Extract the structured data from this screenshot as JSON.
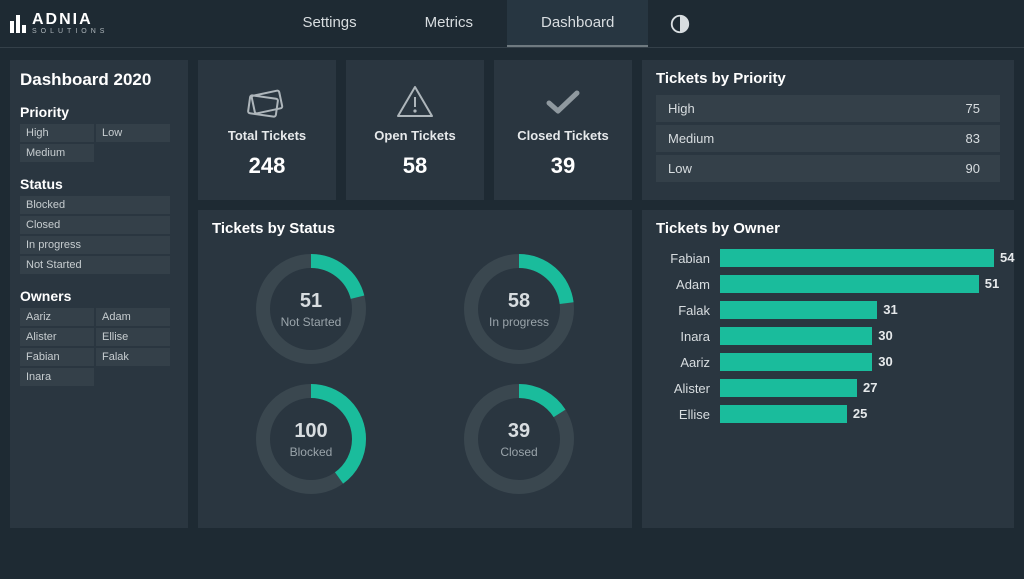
{
  "brand": {
    "name": "ADNIA",
    "sub": "SOLUTIONS"
  },
  "nav": {
    "items": [
      "Settings",
      "Metrics",
      "Dashboard"
    ],
    "active_index": 2
  },
  "sidebar": {
    "title": "Dashboard  2020",
    "priority": {
      "title": "Priority",
      "items": [
        "High",
        "Low",
        "Medium"
      ]
    },
    "status": {
      "title": "Status",
      "items": [
        "Blocked",
        "Closed",
        "In progress",
        "Not Started"
      ]
    },
    "owners": {
      "title": "Owners",
      "items": [
        "Aariz",
        "Adam",
        "Alister",
        "Ellise",
        "Fabian",
        "Falak",
        "Inara"
      ]
    }
  },
  "kpis": [
    {
      "label": "Total Tickets",
      "value": "248",
      "icon": "ticket"
    },
    {
      "label": "Open Tickets",
      "value": "58",
      "icon": "warning"
    },
    {
      "label": "Closed Tickets",
      "value": "39",
      "icon": "check"
    }
  ],
  "priority_panel": {
    "title": "Tickets by Priority",
    "rows": [
      {
        "label": "High",
        "value": "75"
      },
      {
        "label": "Medium",
        "value": "83"
      },
      {
        "label": "Low",
        "value": "90"
      }
    ]
  },
  "status_panel": {
    "title": "Tickets by Status",
    "accent_color": "#1abc9c",
    "track_color": "#3a474f",
    "donuts": [
      {
        "label": "Not Started",
        "value": "51",
        "fraction": 0.21,
        "start_deg": -90
      },
      {
        "label": "In progress",
        "value": "58",
        "fraction": 0.23,
        "start_deg": -90
      },
      {
        "label": "Blocked",
        "value": "100",
        "fraction": 0.4,
        "start_deg": -90
      },
      {
        "label": "Closed",
        "value": "39",
        "fraction": 0.16,
        "start_deg": -90
      }
    ]
  },
  "owner_panel": {
    "title": "Tickets by Owner",
    "bar_color": "#1abc9c",
    "max_value": 54,
    "rows": [
      {
        "name": "Fabian",
        "value": 54
      },
      {
        "name": "Adam",
        "value": 51
      },
      {
        "name": "Falak",
        "value": 31
      },
      {
        "name": "Inara",
        "value": 30
      },
      {
        "name": "Aariz",
        "value": 30
      },
      {
        "name": "Alister",
        "value": 27
      },
      {
        "name": "Ellise",
        "value": 25
      }
    ]
  },
  "colors": {
    "background": "#1e2a33",
    "panel": "#2a3640",
    "sub_panel": "#344049",
    "text": "#d8dde0",
    "text_dim": "#9aa4aa",
    "white": "#ffffff"
  }
}
